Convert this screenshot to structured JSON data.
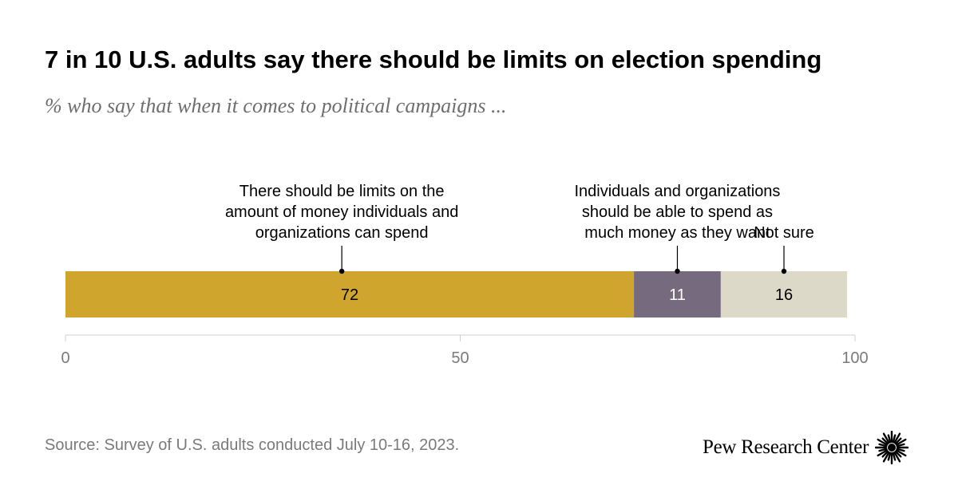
{
  "header": {
    "title": "7 in 10 U.S. adults say there should be limits on election spending",
    "subtitle": "% who say that when it comes to political campaigns ..."
  },
  "chart_data": {
    "type": "bar",
    "orientation": "horizontal-stacked",
    "series": [
      {
        "name": "There should be limits on the amount of money individuals and organizations can spend",
        "label_lines": [
          "There should be limits on the",
          "amount of money individuals and",
          "organizations can spend"
        ],
        "value": 72,
        "color": "#D0A52E",
        "label_color": "#000000"
      },
      {
        "name": "Individuals and organizations should be able to spend as much money as they want",
        "label_lines": [
          "Individuals and organizations",
          "should be able to spend as",
          "much money as they want"
        ],
        "value": 11,
        "color": "#756A7E",
        "label_color": "#FFFFFF"
      },
      {
        "name": "Not sure",
        "label_lines": [
          "Not sure"
        ],
        "value": 16,
        "color": "#DDD9C9",
        "label_color": "#000000"
      }
    ],
    "xlim": [
      0,
      100
    ],
    "xticks": [
      0,
      50,
      100
    ],
    "tick_labels": [
      "0",
      "50",
      "100"
    ],
    "grid": false
  },
  "footer": {
    "source": "Source: Survey of U.S. adults conducted July 10-16, 2023.",
    "brand": "Pew Research Center"
  }
}
